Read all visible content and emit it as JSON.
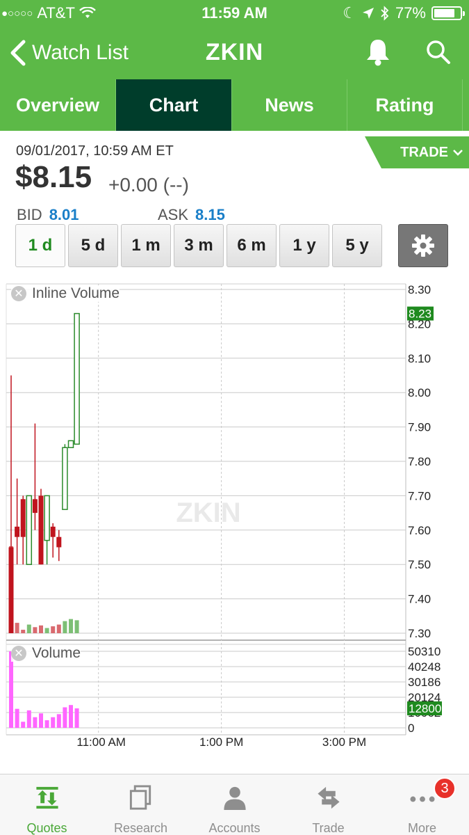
{
  "status_bar": {
    "carrier": "AT&T",
    "time": "11:59 AM",
    "battery": "77%",
    "battery_level": 0.77,
    "signal_bars_filled": 1,
    "signal_bars_total": 5
  },
  "nav": {
    "back_label": "Watch List",
    "title": "ZKIN"
  },
  "tabs": [
    {
      "label": "Overview",
      "active": false
    },
    {
      "label": "Chart",
      "active": true
    },
    {
      "label": "News",
      "active": false
    },
    {
      "label": "Rating",
      "active": false
    }
  ],
  "quote": {
    "timestamp": "09/01/2017, 10:59 AM ET",
    "trade_label": "TRADE",
    "price": "$8.15",
    "change": "+0.00 (--)",
    "bid_label": "BID",
    "bid": "8.01",
    "ask_label": "ASK",
    "ask": "8.15"
  },
  "ranges": [
    {
      "label": "1 d",
      "active": true
    },
    {
      "label": "5 d",
      "active": false
    },
    {
      "label": "1 m",
      "active": false
    },
    {
      "label": "3 m",
      "active": false
    },
    {
      "label": "6 m",
      "active": false
    },
    {
      "label": "1 y",
      "active": false
    },
    {
      "label": "5 y",
      "active": false
    }
  ],
  "chart_data": [
    {
      "type": "candlestick",
      "title": "Inline Volume",
      "watermark": "ZKIN",
      "ylim": [
        7.3,
        8.3
      ],
      "y_ticks": [
        "8.30",
        "8.20",
        "8.10",
        "8.00",
        "7.90",
        "7.80",
        "7.70",
        "7.60",
        "7.50",
        "7.40",
        "7.30"
      ],
      "last_value_label": "8.23",
      "x_ticks": [
        "11:00 AM",
        "1:00 PM",
        "3:00 PM"
      ],
      "candles": [
        {
          "o": 7.55,
          "h": 8.05,
          "l": 7.3,
          "c": 7.3,
          "color": "red"
        },
        {
          "o": 7.61,
          "h": 7.75,
          "l": 7.5,
          "c": 7.58,
          "color": "red"
        },
        {
          "o": 7.69,
          "h": 7.7,
          "l": 7.5,
          "c": 7.58,
          "color": "red"
        },
        {
          "o": 7.5,
          "h": 7.7,
          "l": 7.5,
          "c": 7.7,
          "color": "green"
        },
        {
          "o": 7.69,
          "h": 7.91,
          "l": 7.6,
          "c": 7.65,
          "color": "red"
        },
        {
          "o": 7.7,
          "h": 7.72,
          "l": 7.5,
          "c": 7.5,
          "color": "red"
        },
        {
          "o": 7.57,
          "h": 7.7,
          "l": 7.5,
          "c": 7.7,
          "color": "green"
        },
        {
          "o": 7.61,
          "h": 7.62,
          "l": 7.52,
          "c": 7.58,
          "color": "red"
        },
        {
          "o": 7.58,
          "h": 7.6,
          "l": 7.51,
          "c": 7.55,
          "color": "red"
        },
        {
          "o": 7.66,
          "h": 7.85,
          "l": 7.66,
          "c": 7.84,
          "color": "green"
        },
        {
          "o": 7.84,
          "h": 7.86,
          "l": 7.84,
          "c": 7.86,
          "color": "green"
        },
        {
          "o": 7.85,
          "h": 8.23,
          "l": 7.85,
          "c": 8.23,
          "color": "green"
        }
      ],
      "inline_volume": [
        50310,
        6000,
        2000,
        5000,
        3500,
        4500,
        3000,
        4000,
        5000,
        7000,
        8200,
        7500
      ]
    },
    {
      "type": "bar",
      "title": "Volume",
      "ylim": [
        0,
        50310
      ],
      "y_ticks": [
        "50310",
        "40248",
        "30186",
        "20124",
        "10062",
        "0"
      ],
      "last_value_label": "12800",
      "x_ticks": [
        "11:00 AM",
        "1:00 PM",
        "3:00 PM"
      ],
      "values": [
        50310,
        12500,
        4000,
        11500,
        7000,
        9500,
        5000,
        7000,
        9000,
        13500,
        15000,
        12800
      ],
      "color": "#ff66ff"
    }
  ],
  "tab_bar": [
    {
      "label": "Quotes",
      "icon": "quotes-icon",
      "active": true
    },
    {
      "label": "Research",
      "icon": "research-icon",
      "active": false
    },
    {
      "label": "Accounts",
      "icon": "accounts-icon",
      "active": false
    },
    {
      "label": "Trade",
      "icon": "trade-icon",
      "active": false
    },
    {
      "label": "More",
      "icon": "more-icon",
      "active": false,
      "badge": "3"
    }
  ],
  "colors": {
    "brand_green": "#5cb947",
    "active_tab": "#003d2b",
    "candle_red": "#c0141e",
    "candle_green": "#2a8a2a",
    "value_blue": "#1a7fc8",
    "badge_red": "#e8312a"
  }
}
